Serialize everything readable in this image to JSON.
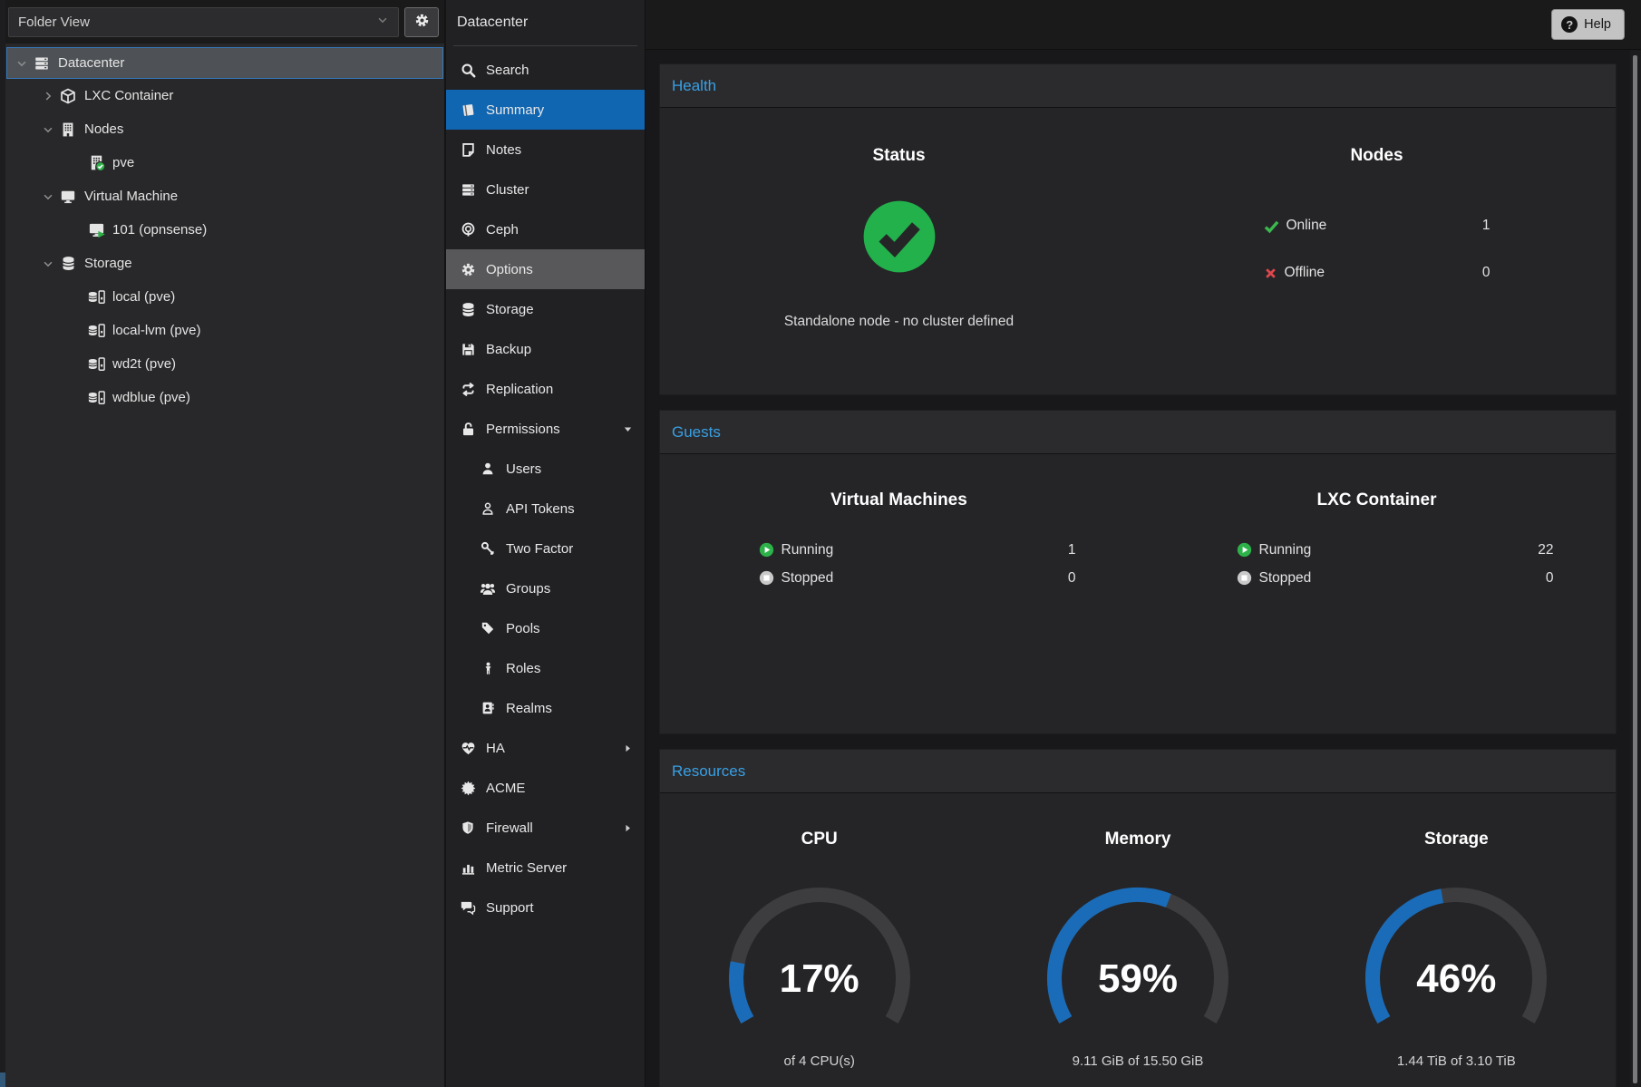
{
  "left_panel": {
    "view_selector": {
      "value": "Folder View",
      "chevron_icon": "chevron-down-icon"
    },
    "settings_icon": "gear-icon",
    "tree": [
      {
        "label": "Datacenter",
        "icon": "datacenter-icon",
        "level": 0,
        "expander": "down",
        "selected": true
      },
      {
        "label": "LXC Container",
        "icon": "cube-icon",
        "level": 1,
        "expander": "right",
        "selected": false
      },
      {
        "label": "Nodes",
        "icon": "building-icon",
        "level": 1,
        "expander": "down",
        "selected": false
      },
      {
        "label": "pve",
        "icon": "node-online-icon",
        "level": 2,
        "expander": "none",
        "selected": false
      },
      {
        "label": "Virtual Machine",
        "icon": "monitor-icon",
        "level": 1,
        "expander": "down",
        "selected": false
      },
      {
        "label": "101 (opnsense)",
        "icon": "vm-running-icon",
        "level": 2,
        "expander": "none",
        "selected": false
      },
      {
        "label": "Storage",
        "icon": "database-icon",
        "level": 1,
        "expander": "down",
        "selected": false
      },
      {
        "label": "local (pve)",
        "icon": "storage-drive-icon",
        "level": 2,
        "expander": "none",
        "selected": false
      },
      {
        "label": "local-lvm (pve)",
        "icon": "storage-drive-icon",
        "level": 2,
        "expander": "none",
        "selected": false
      },
      {
        "label": "wd2t (pve)",
        "icon": "storage-drive-icon",
        "level": 2,
        "expander": "none",
        "selected": false
      },
      {
        "label": "wdblue (pve)",
        "icon": "storage-drive-icon",
        "level": 2,
        "expander": "none",
        "selected": false
      }
    ]
  },
  "nav": {
    "title": "Datacenter",
    "items": [
      {
        "label": "Search",
        "icon": "search-icon",
        "state": "normal",
        "indent": 0,
        "arrow": "none"
      },
      {
        "label": "Summary",
        "icon": "book-icon",
        "state": "selected",
        "indent": 0,
        "arrow": "none"
      },
      {
        "label": "Notes",
        "icon": "note-icon",
        "state": "normal",
        "indent": 0,
        "arrow": "none"
      },
      {
        "label": "Cluster",
        "icon": "cluster-icon",
        "state": "normal",
        "indent": 0,
        "arrow": "none"
      },
      {
        "label": "Ceph",
        "icon": "ceph-icon",
        "state": "normal",
        "indent": 0,
        "arrow": "none"
      },
      {
        "label": "Options",
        "icon": "gear-icon",
        "state": "highlighted",
        "indent": 0,
        "arrow": "none"
      },
      {
        "label": "Storage",
        "icon": "database-icon",
        "state": "normal",
        "indent": 0,
        "arrow": "none"
      },
      {
        "label": "Backup",
        "icon": "floppy-icon",
        "state": "normal",
        "indent": 0,
        "arrow": "none"
      },
      {
        "label": "Replication",
        "icon": "sync-icon",
        "state": "normal",
        "indent": 0,
        "arrow": "none"
      },
      {
        "label": "Permissions",
        "icon": "unlock-icon",
        "state": "normal",
        "indent": 0,
        "arrow": "down"
      },
      {
        "label": "Users",
        "icon": "user-icon",
        "state": "normal",
        "indent": 1,
        "arrow": "none"
      },
      {
        "label": "API Tokens",
        "icon": "user-outline-icon",
        "state": "normal",
        "indent": 1,
        "arrow": "none"
      },
      {
        "label": "Two Factor",
        "icon": "key-icon",
        "state": "normal",
        "indent": 1,
        "arrow": "none"
      },
      {
        "label": "Groups",
        "icon": "users-icon",
        "state": "normal",
        "indent": 1,
        "arrow": "none"
      },
      {
        "label": "Pools",
        "icon": "tag-icon",
        "state": "normal",
        "indent": 1,
        "arrow": "none"
      },
      {
        "label": "Roles",
        "icon": "person-icon",
        "state": "normal",
        "indent": 1,
        "arrow": "none"
      },
      {
        "label": "Realms",
        "icon": "address-book-icon",
        "state": "normal",
        "indent": 1,
        "arrow": "none"
      },
      {
        "label": "HA",
        "icon": "heartbeat-icon",
        "state": "normal",
        "indent": 0,
        "arrow": "right"
      },
      {
        "label": "ACME",
        "icon": "seal-icon",
        "state": "normal",
        "indent": 0,
        "arrow": "none"
      },
      {
        "label": "Firewall",
        "icon": "shield-icon",
        "state": "normal",
        "indent": 0,
        "arrow": "right"
      },
      {
        "label": "Metric Server",
        "icon": "bar-chart-icon",
        "state": "normal",
        "indent": 0,
        "arrow": "none"
      },
      {
        "label": "Support",
        "icon": "comments-icon",
        "state": "normal",
        "indent": 0,
        "arrow": "none"
      }
    ]
  },
  "header": {
    "help_label": "Help",
    "help_icon": "question-circle-icon"
  },
  "main": {
    "health": {
      "title": "Health",
      "status": {
        "heading": "Status",
        "icon": "check-circle-icon",
        "message": "Standalone node - no cluster defined"
      },
      "nodes": {
        "heading": "Nodes",
        "rows": [
          {
            "icon": "check-icon",
            "label": "Online",
            "value": "1"
          },
          {
            "icon": "cross-icon",
            "label": "Offline",
            "value": "0"
          }
        ]
      }
    },
    "guests": {
      "title": "Guests",
      "columns": [
        {
          "heading": "Virtual Machines",
          "rows": [
            {
              "icon": "play-circle-icon",
              "label": "Running",
              "value": "1"
            },
            {
              "icon": "stop-circle-icon",
              "label": "Stopped",
              "value": "0"
            }
          ]
        },
        {
          "heading": "LXC Container",
          "rows": [
            {
              "icon": "play-circle-icon",
              "label": "Running",
              "value": "22"
            },
            {
              "icon": "stop-circle-icon",
              "label": "Stopped",
              "value": "0"
            }
          ]
        }
      ]
    },
    "resources": {
      "title": "Resources",
      "gauges": [
        {
          "heading": "CPU",
          "percent": 17,
          "percent_label": "17%",
          "detail": "of 4 CPU(s)"
        },
        {
          "heading": "Memory",
          "percent": 59,
          "percent_label": "59%",
          "detail": "9.11 GiB of 15.50 GiB"
        },
        {
          "heading": "Storage",
          "percent": 46,
          "percent_label": "46%",
          "detail": "1.44 TiB of 3.10 TiB"
        }
      ]
    }
  },
  "colors": {
    "selected_blue": "#1166b2",
    "section_title_blue": "#38a0e4",
    "gauge_blue": "#1a6cb8",
    "gauge_track": "#3d3d40",
    "status_green": "#23b14c",
    "running_green": "#2db24a",
    "offline_red": "#e0474c",
    "stopped_gray": "#c9c9c9",
    "tree_selected_bg": "#4e5256",
    "tree_selected_border": "#3577b8"
  }
}
